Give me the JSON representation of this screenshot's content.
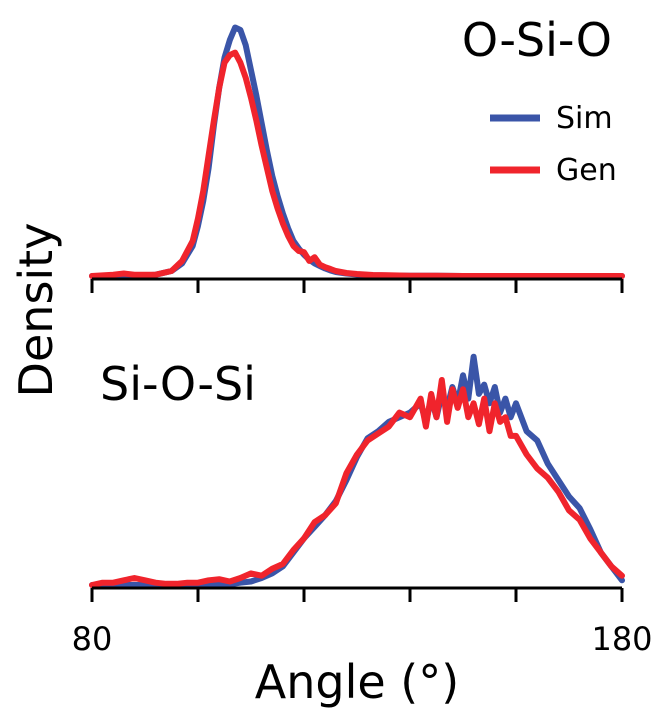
{
  "colors": {
    "sim": "#3a55a8",
    "gen": "#f0242c",
    "axis": "#000000"
  },
  "chart_data": {
    "type": "line",
    "xlabel": "Angle (°)",
    "ylabel": "Density",
    "xlim": [
      80,
      180
    ],
    "x_tick_labels": [
      "80",
      "180"
    ],
    "x_ticks": [
      80,
      100,
      120,
      140,
      160,
      180
    ],
    "grid": false,
    "legend_placement": "top-right",
    "legend": [
      {
        "name": "Sim",
        "color": "#3a55a8"
      },
      {
        "name": "Gen",
        "color": "#f0242c"
      }
    ],
    "panels": [
      {
        "title": "O-Si-O",
        "ylim": [
          0,
          1.0
        ],
        "series": [
          {
            "name": "Sim",
            "x": [
              80,
              84,
              88,
              92,
              95,
              97,
              99,
              100,
              101,
              102,
              103,
              104,
              105,
              106,
              107,
              108,
              109,
              110,
              111,
              112,
              113,
              114,
              115,
              116,
              117,
              118,
              119,
              120,
              121,
              122,
              123,
              124,
              125,
              126,
              128,
              130,
              133,
              136,
              140,
              145,
              150,
              160,
              170,
              180
            ],
            "y": [
              0,
              0,
              0,
              0.005,
              0.02,
              0.05,
              0.12,
              0.2,
              0.3,
              0.43,
              0.6,
              0.75,
              0.87,
              0.94,
              0.99,
              0.98,
              0.92,
              0.82,
              0.72,
              0.61,
              0.5,
              0.4,
              0.32,
              0.25,
              0.19,
              0.14,
              0.11,
              0.085,
              0.065,
              0.05,
              0.04,
              0.03,
              0.022,
              0.016,
              0.01,
              0.006,
              0.003,
              0.002,
              0.001,
              0.001,
              0,
              0,
              0,
              0
            ]
          },
          {
            "name": "Gen",
            "x": [
              80,
              84,
              86,
              88,
              92,
              95,
              97,
              99,
              100,
              101,
              102,
              103,
              104,
              105,
              106,
              107,
              108,
              109,
              110,
              111,
              112,
              113,
              114,
              115,
              116,
              117,
              118,
              119,
              120,
              121,
              122,
              123,
              124,
              125,
              126,
              128,
              130,
              133,
              136,
              140,
              145,
              150,
              160,
              170,
              180
            ],
            "y": [
              0,
              0.005,
              0.01,
              0.005,
              0.005,
              0.02,
              0.06,
              0.14,
              0.23,
              0.34,
              0.48,
              0.62,
              0.75,
              0.85,
              0.88,
              0.89,
              0.85,
              0.79,
              0.71,
              0.62,
              0.52,
              0.43,
              0.34,
              0.27,
              0.21,
              0.16,
              0.12,
              0.1,
              0.095,
              0.06,
              0.075,
              0.045,
              0.035,
              0.028,
              0.02,
              0.012,
              0.008,
              0.004,
              0.003,
              0.001,
              0.001,
              0,
              0,
              0,
              0
            ]
          }
        ]
      },
      {
        "title": "Si-O-Si",
        "ylim": [
          0,
          1.0
        ],
        "series": [
          {
            "name": "Sim",
            "x": [
              80,
              85,
              90,
              95,
              100,
              105,
              108,
              110,
              112,
              114,
              116,
              118,
              120,
              122,
              124,
              126,
              128,
              130,
              132,
              134,
              136,
              138,
              140,
              142,
              143,
              144,
              145,
              146,
              147,
              148,
              149,
              150,
              151,
              152,
              153,
              154,
              155,
              156,
              157,
              158,
              159,
              160,
              162,
              164,
              166,
              168,
              170,
              172,
              174,
              176,
              178,
              180
            ],
            "y": [
              0,
              0,
              0,
              0,
              0,
              0,
              0.01,
              0.015,
              0.03,
              0.05,
              0.08,
              0.14,
              0.2,
              0.25,
              0.3,
              0.36,
              0.45,
              0.55,
              0.63,
              0.66,
              0.7,
              0.72,
              0.74,
              0.78,
              0.7,
              0.8,
              0.72,
              0.82,
              0.76,
              0.85,
              0.78,
              0.9,
              0.8,
              0.98,
              0.82,
              0.86,
              0.78,
              0.85,
              0.74,
              0.8,
              0.72,
              0.78,
              0.66,
              0.62,
              0.52,
              0.45,
              0.38,
              0.33,
              0.24,
              0.14,
              0.08,
              0.02
            ]
          },
          {
            "name": "Gen",
            "x": [
              80,
              82,
              84,
              86,
              88,
              90,
              92,
              94,
              96,
              98,
              100,
              102,
              104,
              106,
              108,
              110,
              112,
              114,
              116,
              118,
              120,
              122,
              124,
              126,
              128,
              130,
              132,
              134,
              136,
              138,
              140,
              142,
              143,
              144,
              145,
              146,
              147,
              148,
              149,
              150,
              151,
              152,
              153,
              154,
              155,
              156,
              157,
              158,
              159,
              160,
              162,
              164,
              166,
              168,
              170,
              172,
              174,
              176,
              178,
              180
            ],
            "y": [
              0,
              0.01,
              0.01,
              0.02,
              0.03,
              0.02,
              0.01,
              0.005,
              0.005,
              0.01,
              0.01,
              0.02,
              0.025,
              0.015,
              0.03,
              0.05,
              0.04,
              0.07,
              0.09,
              0.15,
              0.2,
              0.27,
              0.3,
              0.35,
              0.48,
              0.56,
              0.62,
              0.65,
              0.68,
              0.74,
              0.72,
              0.8,
              0.68,
              0.82,
              0.72,
              0.88,
              0.7,
              0.84,
              0.76,
              0.84,
              0.72,
              0.78,
              0.69,
              0.8,
              0.66,
              0.78,
              0.7,
              0.72,
              0.64,
              0.64,
              0.56,
              0.5,
              0.46,
              0.4,
              0.32,
              0.28,
              0.2,
              0.14,
              0.08,
              0.04
            ]
          }
        ]
      }
    ]
  }
}
